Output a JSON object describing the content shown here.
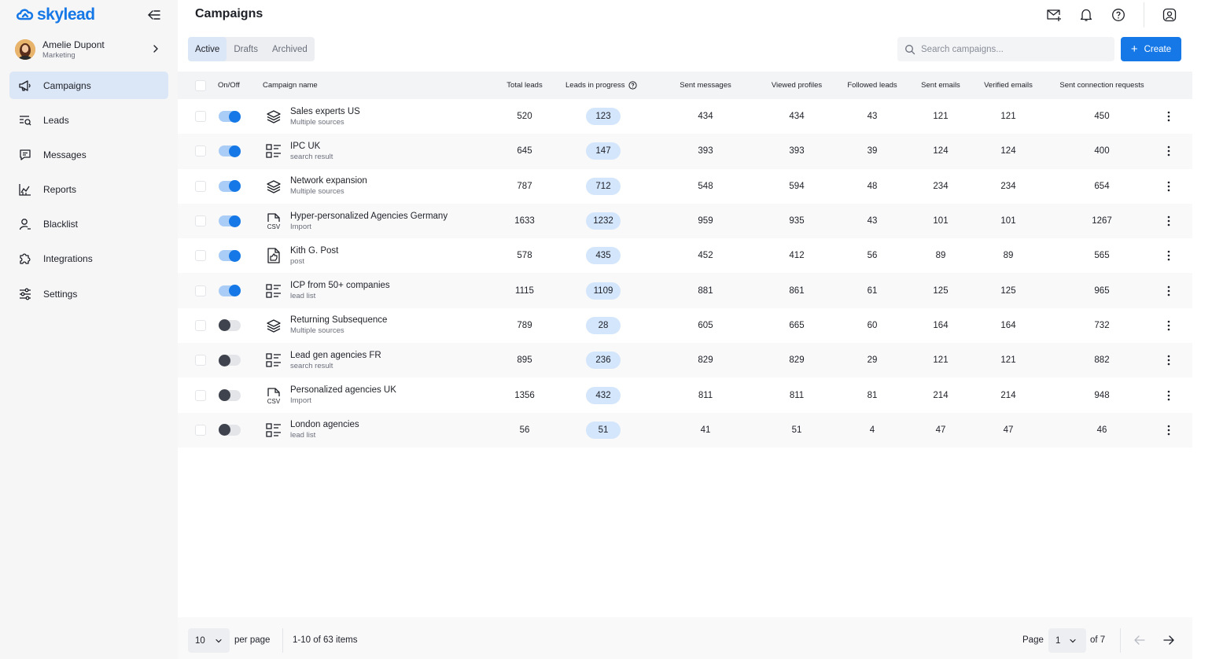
{
  "app": {
    "logo_text": "skylead",
    "accent": "#1578e6"
  },
  "user": {
    "name": "Amelie Dupont",
    "role": "Marketing"
  },
  "sidebar": {
    "items": [
      {
        "label": "Campaigns",
        "icon": "megaphone-icon",
        "active": true
      },
      {
        "label": "Leads",
        "icon": "leads-icon",
        "active": false
      },
      {
        "label": "Messages",
        "icon": "message-icon",
        "active": false
      },
      {
        "label": "Reports",
        "icon": "chart-icon",
        "active": false
      },
      {
        "label": "Blacklist",
        "icon": "user-block-icon",
        "active": false
      },
      {
        "label": "Integrations",
        "icon": "puzzle-icon",
        "active": false
      },
      {
        "label": "Settings",
        "icon": "sliders-icon",
        "active": false
      }
    ]
  },
  "header": {
    "title": "Campaigns",
    "icons": [
      "mail-plus-icon",
      "bell-icon",
      "help-icon",
      "account-icon"
    ]
  },
  "tabs": [
    "Active",
    "Drafts",
    "Archived"
  ],
  "search": {
    "placeholder": "Search campaigns..."
  },
  "create_label": "Create",
  "table": {
    "headers": {
      "onoff": "On/Off",
      "name": "Campaign name",
      "total_leads": "Total leads",
      "in_progress": "Leads in progress",
      "sent_messages": "Sent messages",
      "viewed_profiles": "Viewed profiles",
      "followed_leads": "Followed leads",
      "sent_emails": "Sent emails",
      "verified_emails": "Verified emails",
      "sent_connections": "Sent connection requests"
    },
    "rows": [
      {
        "name": "Sales experts US",
        "source": "Multiple sources",
        "icon": "layers-icon",
        "on": true,
        "total": "520",
        "progress": "123",
        "messages": "434",
        "viewed": "434",
        "followed": "43",
        "emails": "121",
        "verified": "121",
        "connections": "450"
      },
      {
        "name": "IPC UK",
        "source": "search result",
        "icon": "list-icon",
        "on": true,
        "total": "645",
        "progress": "147",
        "messages": "393",
        "viewed": "393",
        "followed": "39",
        "emails": "124",
        "verified": "124",
        "connections": "400"
      },
      {
        "name": "Network expansion",
        "source": "Multiple sources",
        "icon": "layers-icon",
        "on": true,
        "total": "787",
        "progress": "712",
        "messages": "548",
        "viewed": "594",
        "followed": "48",
        "emails": "234",
        "verified": "234",
        "connections": "654"
      },
      {
        "name": "Hyper-personalized Agencies Germany",
        "source": "Import",
        "icon": "csv-icon",
        "on": true,
        "total": "1633",
        "progress": "1232",
        "messages": "959",
        "viewed": "935",
        "followed": "43",
        "emails": "101",
        "verified": "101",
        "connections": "1267"
      },
      {
        "name": "Kith G. Post",
        "source": "post",
        "icon": "post-icon",
        "on": true,
        "total": "578",
        "progress": "435",
        "messages": "452",
        "viewed": "412",
        "followed": "56",
        "emails": "89",
        "verified": "89",
        "connections": "565"
      },
      {
        "name": "ICP from 50+ companies",
        "source": "lead list",
        "icon": "list-icon",
        "on": true,
        "total": "1115",
        "progress": "1109",
        "messages": "881",
        "viewed": "861",
        "followed": "61",
        "emails": "125",
        "verified": "125",
        "connections": "965"
      },
      {
        "name": "Returning Subsequence",
        "source": "Multiple sources",
        "icon": "layers-icon",
        "on": false,
        "total": "789",
        "progress": "28",
        "messages": "605",
        "viewed": "665",
        "followed": "60",
        "emails": "164",
        "verified": "164",
        "connections": "732"
      },
      {
        "name": "Lead gen agencies FR",
        "source": "search result",
        "icon": "list-icon",
        "on": false,
        "total": "895",
        "progress": "236",
        "messages": "829",
        "viewed": "829",
        "followed": "29",
        "emails": "121",
        "verified": "121",
        "connections": "882"
      },
      {
        "name": "Personalized agencies UK",
        "source": "Import",
        "icon": "csv-icon",
        "on": false,
        "total": "1356",
        "progress": "432",
        "messages": "811",
        "viewed": "811",
        "followed": "81",
        "emails": "214",
        "verified": "214",
        "connections": "948"
      },
      {
        "name": "London agencies",
        "source": "lead list",
        "icon": "list-icon",
        "on": false,
        "total": "56",
        "progress": "51",
        "messages": "41",
        "viewed": "51",
        "followed": "4",
        "emails": "47",
        "verified": "47",
        "connections": "46"
      }
    ]
  },
  "footer": {
    "per_page_value": "10",
    "per_page_label": "per page",
    "items_info": "1-10 of 63 items",
    "page_label": "Page",
    "page_value": "1",
    "page_of": "of 7"
  }
}
